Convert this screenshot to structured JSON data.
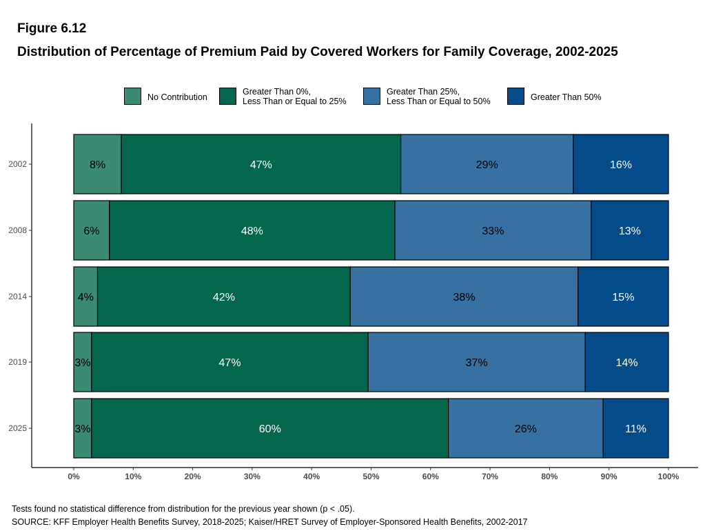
{
  "figure_label": "Figure 6.12",
  "title": "Distribution of Percentage of Premium Paid by Covered Workers for Family Coverage, 2002-2025",
  "legend": [
    {
      "label": "No Contribution",
      "color": "#3a8a74"
    },
    {
      "label": "Greater Than 0%,\nLess Than or Equal to 25%",
      "color": "#04674d"
    },
    {
      "label": "Greater Than 25%,\nLess Than or Equal to 50%",
      "color": "#3771a1"
    },
    {
      "label": "Greater Than 50%",
      "color": "#034b89"
    }
  ],
  "notes": {
    "test_note": "Tests found no statistical difference from distribution for the previous year shown (p < .05).",
    "source": "SOURCE: KFF Employer Health Benefits Survey, 2018-2025; Kaiser/HRET Survey of Employer-Sponsored Health Benefits, 2002-2017"
  },
  "chart_data": {
    "type": "bar",
    "orientation": "horizontal",
    "stacked": true,
    "categories": [
      "2002",
      "2008",
      "2014",
      "2019",
      "2025"
    ],
    "series": [
      {
        "name": "No Contribution",
        "color": "#3a8a74",
        "label_color": "#000000",
        "values": [
          8,
          6,
          4,
          3,
          3
        ],
        "labels": [
          "8%",
          "6%",
          "4%",
          "3%",
          "3%"
        ]
      },
      {
        "name": "Greater Than 0%, Less Than or Equal to 25%",
        "color": "#04674d",
        "label_color": "#ffffff",
        "values": [
          47,
          48,
          42.5,
          46.5,
          60
        ],
        "labels": [
          "47%",
          "48%",
          "42%",
          "47%",
          "60%"
        ]
      },
      {
        "name": "Greater Than 25%, Less Than or Equal to 50%",
        "color": "#3771a1",
        "label_color": "#000000",
        "values": [
          29,
          33,
          38.3,
          36.5,
          26
        ],
        "labels": [
          "29%",
          "33%",
          "38%",
          "37%",
          "26%"
        ]
      },
      {
        "name": "Greater Than 50%",
        "color": "#034b89",
        "label_color": "#ffffff",
        "values": [
          16,
          13,
          15.2,
          14,
          11
        ],
        "labels": [
          "16%",
          "13%",
          "15%",
          "14%",
          "11%"
        ]
      }
    ],
    "x_ticks": [
      "0%",
      "10%",
      "20%",
      "30%",
      "40%",
      "50%",
      "60%",
      "70%",
      "80%",
      "90%",
      "100%"
    ],
    "xlim": [
      0,
      100
    ],
    "xlabel": "",
    "ylabel": "",
    "grid": false,
    "legend_position": "top"
  }
}
